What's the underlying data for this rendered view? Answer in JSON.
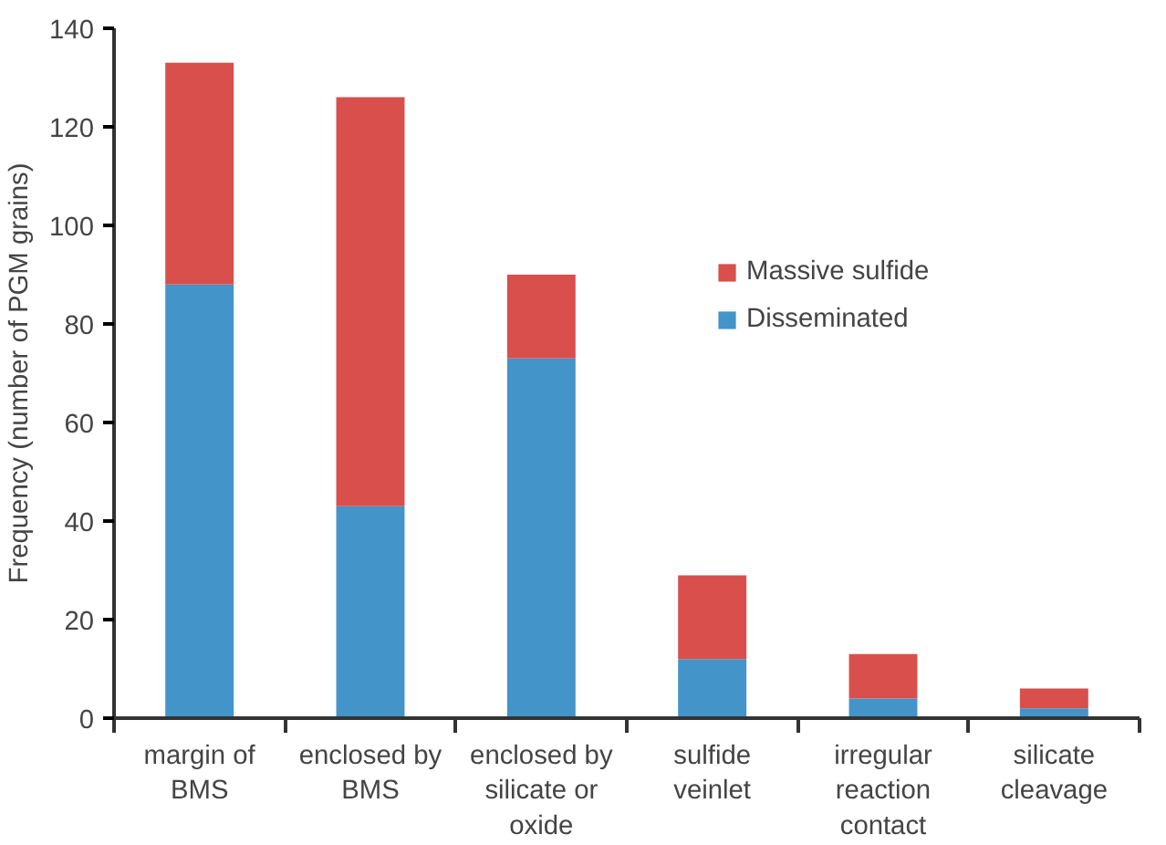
{
  "chart_data": {
    "type": "bar",
    "stacked": true,
    "ylabel": "Frequency (number of PGM grains)",
    "categories": [
      "margin of BMS",
      "enclosed by BMS",
      "enclosed by silicate or oxide",
      "sulfide veinlet",
      "irregular reaction contact",
      "silicate cleavage"
    ],
    "series": [
      {
        "name": "Disseminated",
        "color": "#4394c9",
        "values": [
          88,
          43,
          73,
          12,
          4,
          2
        ]
      },
      {
        "name": "Massive sulfide",
        "color": "#d84f4c",
        "values": [
          45,
          83,
          17,
          17,
          9,
          4
        ]
      }
    ],
    "ylim": [
      0,
      140
    ],
    "yticks": [
      0,
      20,
      40,
      60,
      80,
      100,
      120,
      140
    ],
    "grid": false,
    "legend": "top right"
  }
}
